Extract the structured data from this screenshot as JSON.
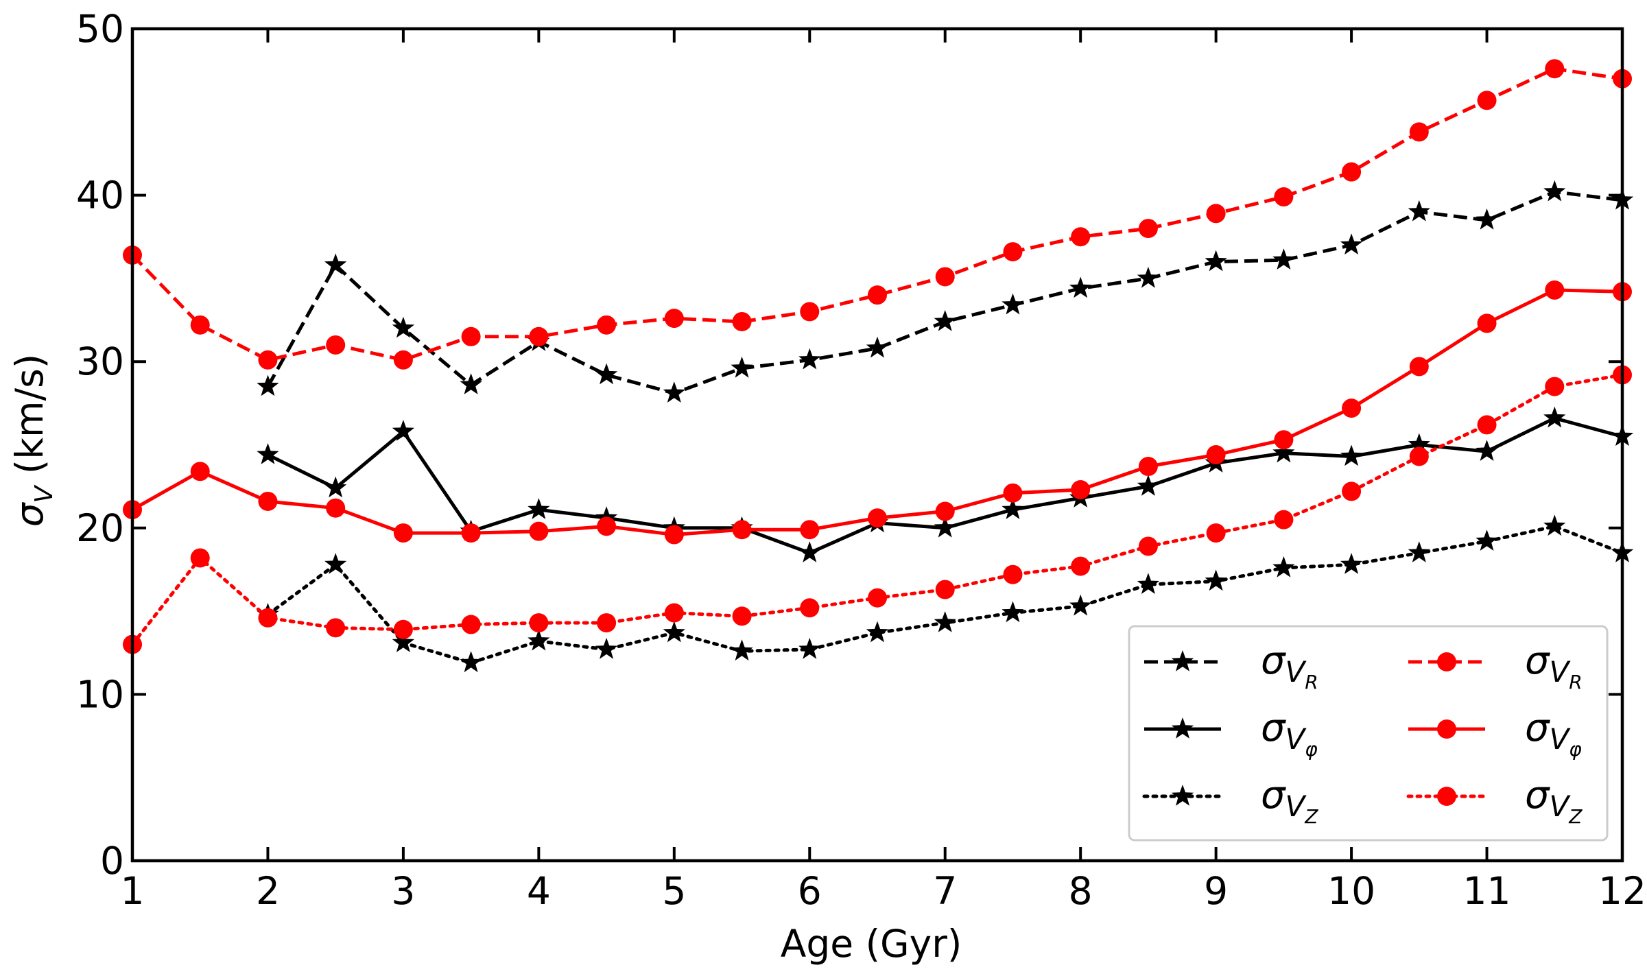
{
  "chart_data": {
    "type": "line",
    "xlabel": "Age (Gyr)",
    "ylabel": "σ",
    "ylabel_sub": "V",
    "ylabel_unit": " (km/s)",
    "xlim": [
      1,
      12
    ],
    "ylim": [
      0,
      50
    ],
    "xticks": [
      1,
      2,
      3,
      4,
      5,
      6,
      7,
      8,
      9,
      10,
      11,
      12
    ],
    "yticks": [
      0,
      10,
      20,
      30,
      40,
      50
    ],
    "grid": false,
    "legend_position": "bottom-right",
    "series": [
      {
        "name": "σ_{V_R}",
        "sub": "R",
        "color": "#000000",
        "marker": "star",
        "dash": "dashed",
        "x": [
          2,
          2.5,
          3,
          3.5,
          4,
          4.5,
          5,
          5.5,
          6,
          6.5,
          7,
          7.5,
          8,
          8.5,
          9,
          9.5,
          10,
          10.5,
          11,
          11.5,
          12
        ],
        "y": [
          28.5,
          35.8,
          32.0,
          28.6,
          31.2,
          29.2,
          28.1,
          29.6,
          30.1,
          30.8,
          32.4,
          33.4,
          34.4,
          35.0,
          36.0,
          36.1,
          37.0,
          39.0,
          38.5,
          40.2,
          39.7
        ]
      },
      {
        "name": "σ_{V_φ}",
        "sub": "φ",
        "color": "#000000",
        "marker": "star",
        "dash": "solid",
        "x": [
          2,
          2.5,
          3,
          3.5,
          4,
          4.5,
          5,
          5.5,
          6,
          6.5,
          7,
          7.5,
          8,
          8.5,
          9,
          9.5,
          10,
          10.5,
          11,
          11.5,
          12
        ],
        "y": [
          24.4,
          22.4,
          25.8,
          19.8,
          21.1,
          20.6,
          20.0,
          20.0,
          18.5,
          20.3,
          20.0,
          21.1,
          21.8,
          22.5,
          23.9,
          24.5,
          24.3,
          25.0,
          24.6,
          26.6,
          25.5
        ]
      },
      {
        "name": "σ_{V_Z}",
        "sub": "Z",
        "color": "#000000",
        "marker": "star",
        "dash": "dotted",
        "x": [
          2,
          2.5,
          3,
          3.5,
          4,
          4.5,
          5,
          5.5,
          6,
          6.5,
          7,
          7.5,
          8,
          8.5,
          9,
          9.5,
          10,
          10.5,
          11,
          11.5,
          12
        ],
        "y": [
          14.8,
          17.8,
          13.1,
          11.9,
          13.2,
          12.7,
          13.7,
          12.6,
          12.7,
          13.7,
          14.3,
          14.9,
          15.3,
          16.6,
          16.8,
          17.6,
          17.8,
          18.5,
          19.2,
          20.1,
          18.5
        ]
      },
      {
        "name": "σ_{V_R}",
        "sub": "R",
        "color": "#ff0000",
        "marker": "circle",
        "dash": "dashed",
        "x": [
          1,
          1.5,
          2,
          2.5,
          3,
          3.5,
          4,
          4.5,
          5,
          5.5,
          6,
          6.5,
          7,
          7.5,
          8,
          8.5,
          9,
          9.5,
          10,
          10.5,
          11,
          11.5,
          12
        ],
        "y": [
          36.4,
          32.2,
          30.1,
          31.0,
          30.1,
          31.5,
          31.5,
          32.2,
          32.6,
          32.4,
          33.0,
          34.0,
          35.1,
          36.6,
          37.5,
          38.0,
          38.9,
          39.9,
          41.4,
          43.8,
          45.7,
          47.6,
          47.0
        ]
      },
      {
        "name": "σ_{V_φ}",
        "sub": "φ",
        "color": "#ff0000",
        "marker": "circle",
        "dash": "solid",
        "x": [
          1,
          1.5,
          2,
          2.5,
          3,
          3.5,
          4,
          4.5,
          5,
          5.5,
          6,
          6.5,
          7,
          7.5,
          8,
          8.5,
          9,
          9.5,
          10,
          10.5,
          11,
          11.5,
          12
        ],
        "y": [
          21.1,
          23.4,
          21.6,
          21.2,
          19.7,
          19.7,
          19.8,
          20.1,
          19.6,
          19.9,
          19.9,
          20.6,
          21.0,
          22.1,
          22.3,
          23.7,
          24.4,
          25.3,
          27.2,
          29.7,
          32.3,
          34.3,
          34.2
        ]
      },
      {
        "name": "σ_{V_Z}",
        "sub": "Z",
        "color": "#ff0000",
        "marker": "circle",
        "dash": "dotted",
        "x": [
          1,
          1.5,
          2,
          2.5,
          3,
          3.5,
          4,
          4.5,
          5,
          5.5,
          6,
          6.5,
          7,
          7.5,
          8,
          8.5,
          9,
          9.5,
          10,
          10.5,
          11,
          11.5,
          12
        ],
        "y": [
          13.0,
          18.2,
          14.6,
          14.0,
          13.9,
          14.2,
          14.3,
          14.3,
          14.9,
          14.7,
          15.2,
          15.8,
          16.3,
          17.2,
          17.7,
          18.9,
          19.7,
          20.5,
          22.2,
          24.3,
          26.2,
          28.5,
          29.2
        ]
      }
    ]
  }
}
